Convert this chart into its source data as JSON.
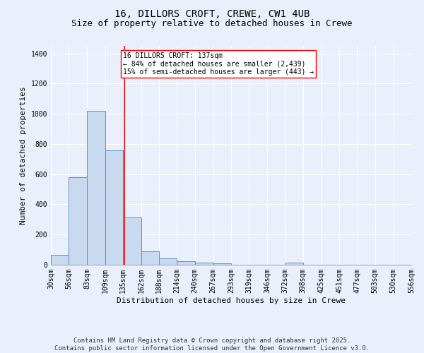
{
  "title_line1": "16, DILLORS CROFT, CREWE, CW1 4UB",
  "title_line2": "Size of property relative to detached houses in Crewe",
  "xlabel": "Distribution of detached houses by size in Crewe",
  "ylabel": "Number of detached properties",
  "bar_color": "#c9d9f0",
  "bar_edge_color": "#5b8fd4",
  "vline_color": "red",
  "vline_x": 137,
  "annotation_text": "16 DILLORS CROFT: 137sqm\n← 84% of detached houses are smaller (2,439)\n15% of semi-detached houses are larger (443) →",
  "annotation_box_color": "white",
  "annotation_box_edge_color": "red",
  "background_color": "#eaf0fb",
  "grid_color": "white",
  "bin_edges": [
    30,
    56,
    83,
    109,
    135,
    162,
    188,
    214,
    240,
    267,
    293,
    319,
    346,
    372,
    398,
    425,
    451,
    477,
    503,
    530,
    556
  ],
  "bar_heights": [
    65,
    580,
    1020,
    760,
    315,
    90,
    40,
    25,
    15,
    10,
    0,
    0,
    0,
    15,
    0,
    0,
    0,
    0,
    0,
    0
  ],
  "ylim": [
    0,
    1450
  ],
  "yticks": [
    0,
    200,
    400,
    600,
    800,
    1000,
    1200,
    1400
  ],
  "footer_text": "Contains HM Land Registry data © Crown copyright and database right 2025.\nContains public sector information licensed under the Open Government Licence v3.0.",
  "title_fontsize": 10,
  "subtitle_fontsize": 9,
  "axis_label_fontsize": 8,
  "tick_fontsize": 7,
  "annot_fontsize": 7,
  "footer_fontsize": 6.5
}
